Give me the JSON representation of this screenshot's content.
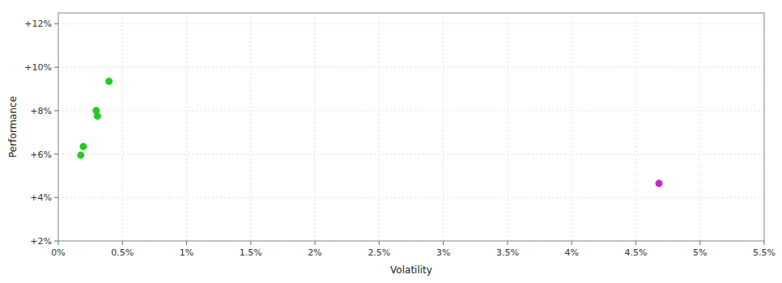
{
  "chart_data": {
    "type": "scatter",
    "xlabel": "Volatility",
    "ylabel": "Performance",
    "xlim": [
      0.0,
      0.055
    ],
    "ylim": [
      0.02,
      0.125
    ],
    "xticks": [
      {
        "value": 0.0,
        "label": "0%"
      },
      {
        "value": 0.005,
        "label": "0.5%"
      },
      {
        "value": 0.01,
        "label": "1%"
      },
      {
        "value": 0.015,
        "label": "1.5%"
      },
      {
        "value": 0.02,
        "label": "2%"
      },
      {
        "value": 0.025,
        "label": "2.5%"
      },
      {
        "value": 0.03,
        "label": "3%"
      },
      {
        "value": 0.035,
        "label": "3.5%"
      },
      {
        "value": 0.04,
        "label": "4%"
      },
      {
        "value": 0.045,
        "label": "4.5%"
      },
      {
        "value": 0.05,
        "label": "5%"
      },
      {
        "value": 0.055,
        "label": "5.5%"
      }
    ],
    "yticks": [
      {
        "value": 0.02,
        "label": "+2%"
      },
      {
        "value": 0.04,
        "label": "+4%"
      },
      {
        "value": 0.06,
        "label": "+6%"
      },
      {
        "value": 0.08,
        "label": "+8%"
      },
      {
        "value": 0.1,
        "label": "+10%"
      },
      {
        "value": 0.12,
        "label": "+12%"
      }
    ],
    "grid": true,
    "series": [
      {
        "color": "#22cc22",
        "x": [
          0.00305,
          0.00295,
          0.00195,
          0.00175,
          0.00395
        ],
        "values": [
          0.0775,
          0.08,
          0.0635,
          0.0595,
          0.0935
        ]
      },
      {
        "color": "#cc22cc",
        "x": [
          0.0468
        ],
        "values": [
          0.0465
        ]
      }
    ]
  }
}
